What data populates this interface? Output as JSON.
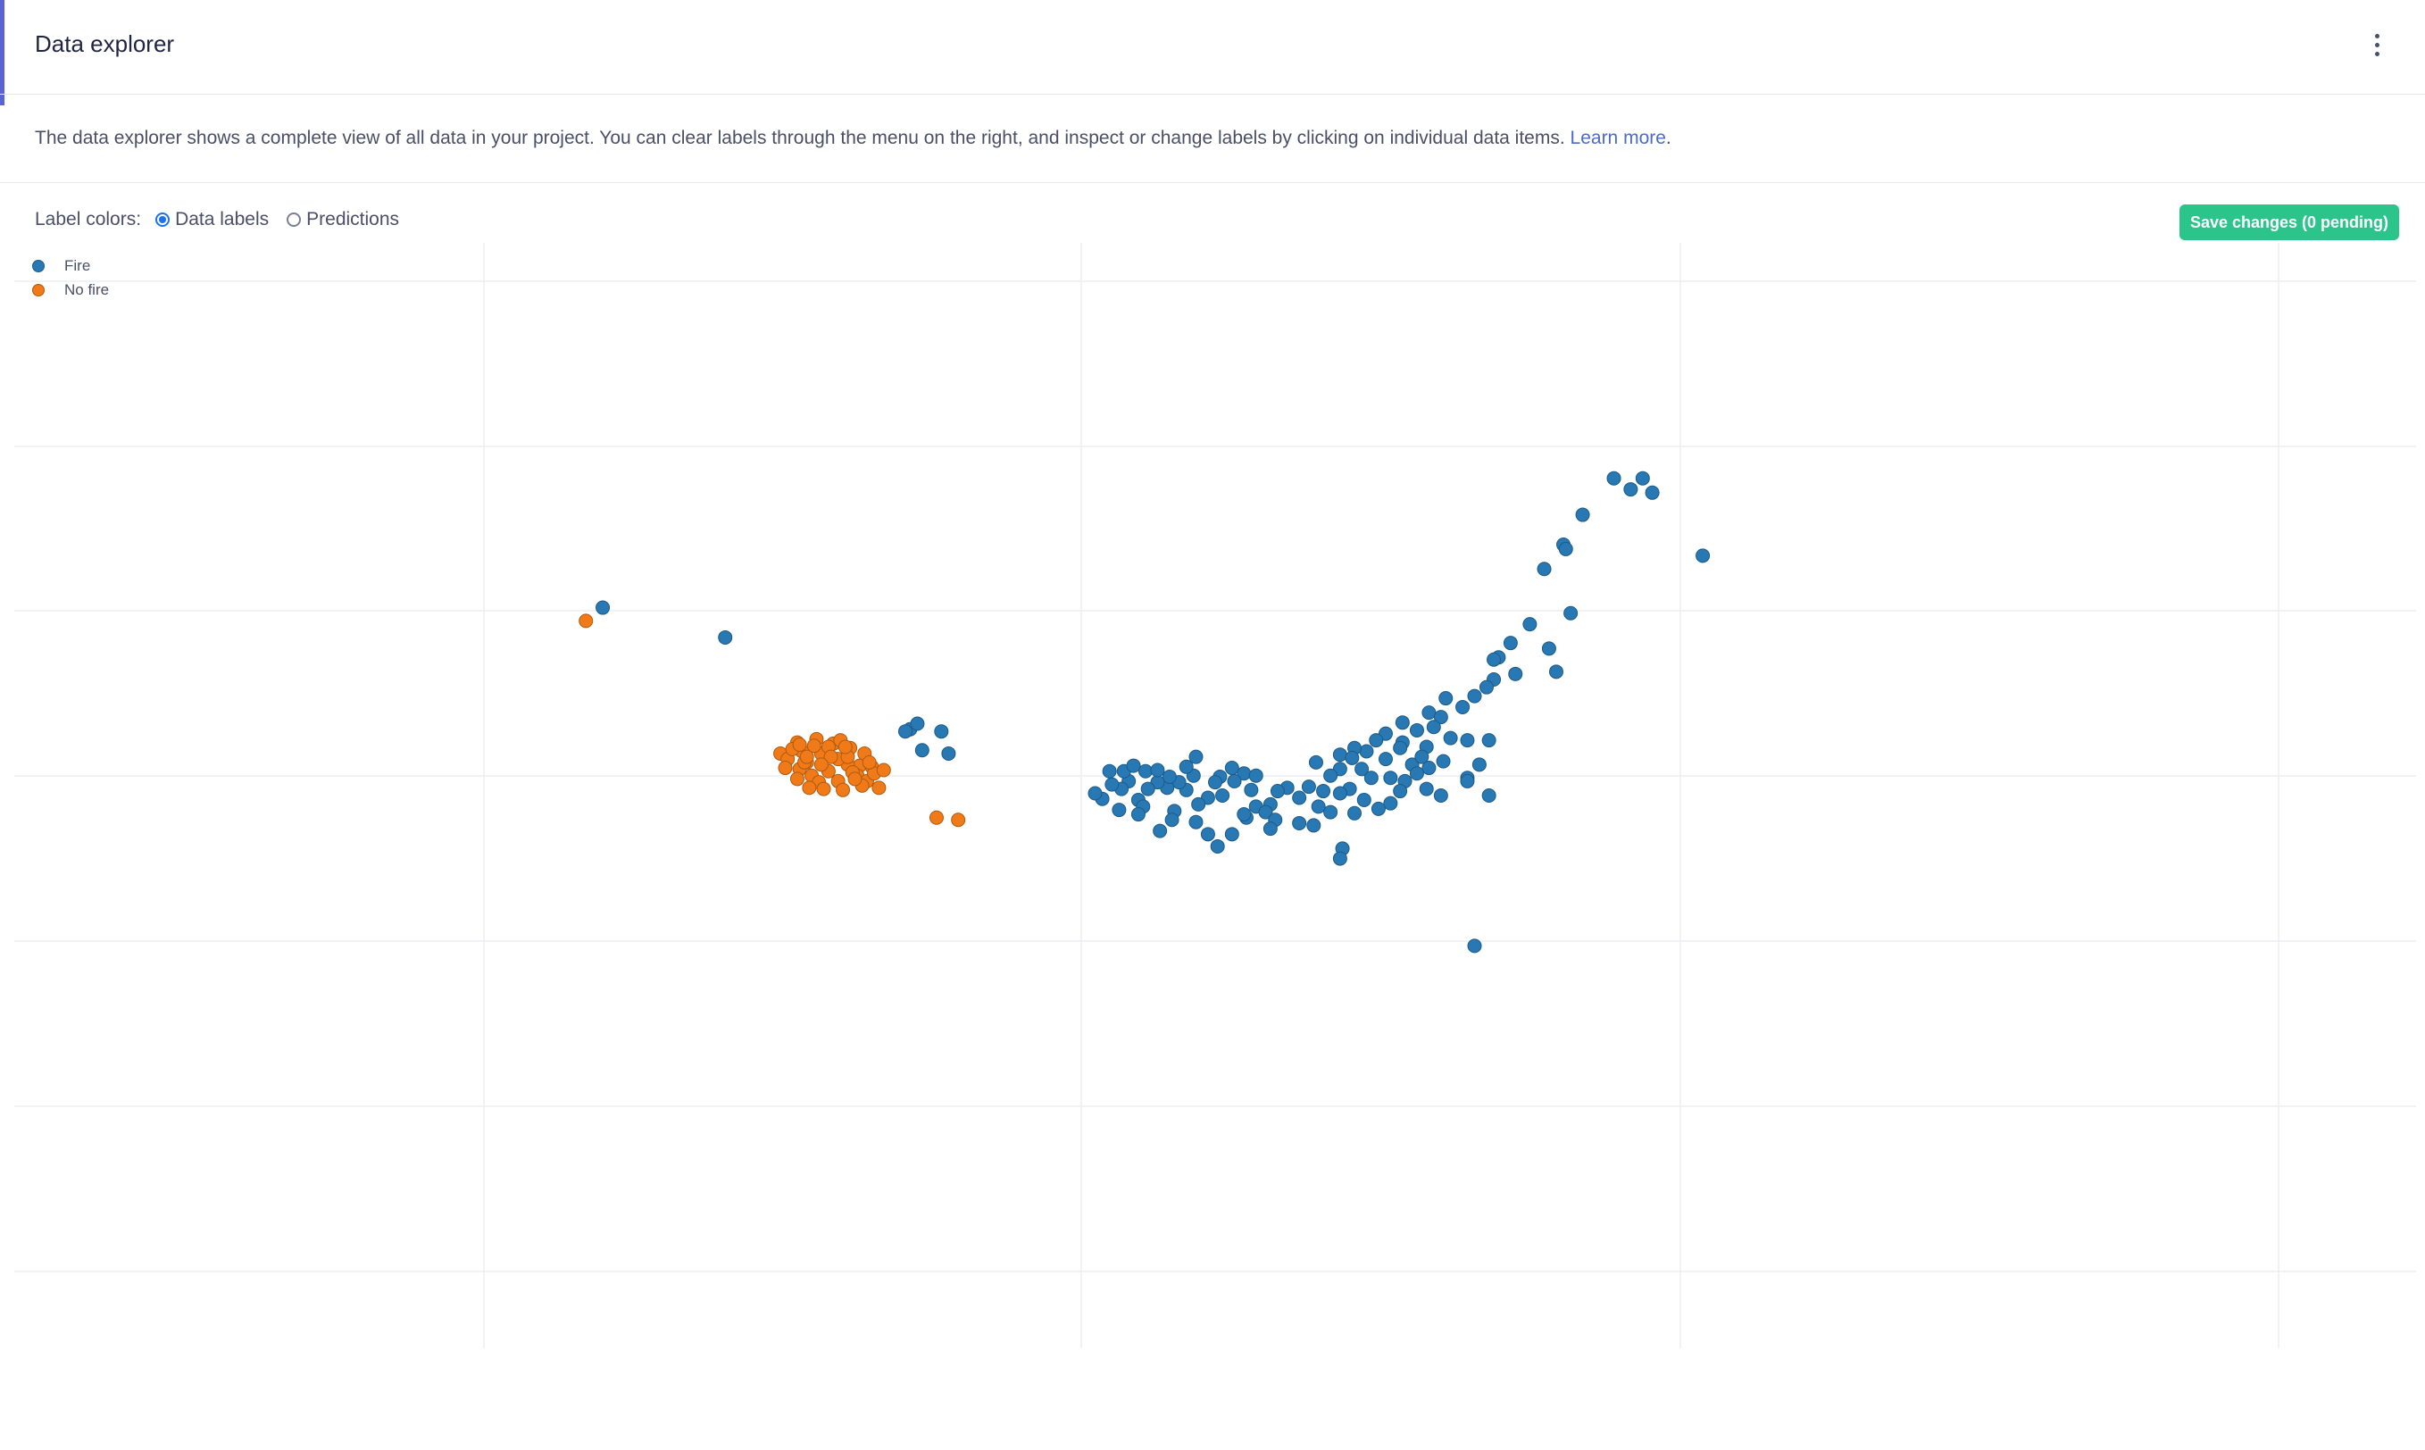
{
  "header": {
    "title": "Data explorer",
    "menu_icon": "kebab-menu-icon"
  },
  "description": {
    "text": "The data explorer shows a complete view of all data in your project. You can clear labels through the menu on the right, and inspect or change labels by clicking on individual data items.",
    "link_label": "Learn more",
    "suffix": "."
  },
  "controls": {
    "label_colors_label": "Label colors:",
    "options": [
      {
        "label": "Data labels",
        "selected": true
      },
      {
        "label": "Predictions",
        "selected": false
      }
    ],
    "save_button_label": "Save changes (0 pending)"
  },
  "colors": {
    "accent": "#5b62d6",
    "fire": "#2878b4",
    "no_fire": "#f07a18",
    "save_button": "#2bc48a"
  },
  "chart_data": {
    "type": "scatter",
    "grid": true,
    "legend_position": "top-left",
    "xlim": [
      0,
      10
    ],
    "ylim": [
      0,
      10
    ],
    "series": [
      {
        "name": "Fire",
        "color": "#2878b4",
        "points": [
          [
            2.45,
            6.7
          ],
          [
            2.96,
            6.43
          ],
          [
            3.73,
            5.6
          ],
          [
            3.76,
            5.65
          ],
          [
            3.71,
            5.58
          ],
          [
            3.86,
            5.58
          ],
          [
            3.78,
            5.41
          ],
          [
            3.89,
            5.38
          ],
          [
            6.78,
            7.87
          ],
          [
            6.82,
            7.74
          ],
          [
            6.73,
            7.77
          ],
          [
            6.66,
            7.87
          ],
          [
            6.53,
            7.54
          ],
          [
            6.45,
            7.27
          ],
          [
            6.46,
            7.23
          ],
          [
            6.37,
            7.05
          ],
          [
            6.31,
            6.55
          ],
          [
            6.48,
            6.65
          ],
          [
            7.03,
            7.17
          ],
          [
            6.39,
            6.33
          ],
          [
            6.23,
            6.38
          ],
          [
            6.18,
            6.25
          ],
          [
            6.16,
            6.23
          ],
          [
            6.25,
            6.1
          ],
          [
            6.42,
            6.12
          ],
          [
            6.16,
            6.05
          ],
          [
            6.13,
            5.98
          ],
          [
            6.08,
            5.9
          ],
          [
            6.03,
            5.8
          ],
          [
            5.96,
            5.88
          ],
          [
            5.89,
            5.75
          ],
          [
            5.94,
            5.71
          ],
          [
            5.78,
            5.66
          ],
          [
            5.91,
            5.62
          ],
          [
            5.84,
            5.59
          ],
          [
            5.78,
            5.48
          ],
          [
            5.71,
            5.56
          ],
          [
            6.05,
            5.5
          ],
          [
            6.14,
            5.5
          ],
          [
            5.98,
            5.52
          ],
          [
            5.88,
            5.44
          ],
          [
            5.77,
            5.43
          ],
          [
            5.71,
            5.33
          ],
          [
            5.67,
            5.5
          ],
          [
            5.63,
            5.4
          ],
          [
            5.58,
            5.43
          ],
          [
            5.52,
            5.37
          ],
          [
            5.52,
            5.24
          ],
          [
            5.48,
            5.18
          ],
          [
            5.57,
            5.34
          ],
          [
            5.61,
            5.24
          ],
          [
            5.65,
            5.16
          ],
          [
            5.73,
            5.16
          ],
          [
            5.79,
            5.13
          ],
          [
            5.82,
            5.28
          ],
          [
            5.86,
            5.35
          ],
          [
            5.89,
            5.25
          ],
          [
            5.95,
            5.31
          ],
          [
            6.05,
            5.16
          ],
          [
            6.1,
            5.28
          ],
          [
            6.14,
            5.0
          ],
          [
            6.05,
            5.13
          ],
          [
            5.94,
            5.0
          ],
          [
            5.88,
            5.06
          ],
          [
            5.84,
            5.2
          ],
          [
            5.77,
            5.04
          ],
          [
            5.73,
            4.93
          ],
          [
            5.68,
            4.88
          ],
          [
            5.62,
            4.96
          ],
          [
            5.56,
            5.06
          ],
          [
            5.52,
            5.02
          ],
          [
            5.48,
            4.85
          ],
          [
            5.43,
            4.9
          ],
          [
            5.45,
            5.04
          ],
          [
            5.39,
            5.08
          ],
          [
            5.35,
            4.98
          ],
          [
            5.3,
            5.07
          ],
          [
            5.26,
            5.04
          ],
          [
            5.23,
            4.92
          ],
          [
            5.17,
            4.9
          ],
          [
            5.21,
            4.85
          ],
          [
            5.15,
            5.05
          ],
          [
            5.12,
            5.2
          ],
          [
            5.08,
            5.13
          ],
          [
            5.03,
            5.0
          ],
          [
            5.13,
            4.8
          ],
          [
            5.25,
            4.78
          ],
          [
            5.35,
            4.75
          ],
          [
            5.41,
            4.73
          ],
          [
            5.17,
            5.18
          ],
          [
            5.07,
            5.25
          ],
          [
            5.02,
            5.17
          ],
          [
            5.0,
            5.12
          ],
          [
            4.97,
            4.98
          ],
          [
            4.93,
            4.92
          ],
          [
            4.88,
            5.05
          ],
          [
            4.85,
            5.12
          ],
          [
            4.8,
            5.07
          ],
          [
            4.76,
            5.12
          ],
          [
            4.72,
            5.06
          ],
          [
            4.68,
            4.96
          ],
          [
            4.64,
            5.13
          ],
          [
            4.61,
            5.06
          ],
          [
            4.57,
            5.1
          ],
          [
            4.53,
            4.97
          ],
          [
            4.5,
            5.02
          ],
          [
            4.56,
            5.22
          ],
          [
            4.62,
            5.22
          ],
          [
            4.66,
            5.27
          ],
          [
            4.71,
            5.22
          ],
          [
            4.76,
            5.23
          ],
          [
            4.81,
            5.17
          ],
          [
            4.91,
            5.18
          ],
          [
            4.88,
            5.26
          ],
          [
            4.83,
            4.86
          ],
          [
            4.7,
            4.9
          ],
          [
            4.6,
            4.87
          ],
          [
            4.68,
            4.83
          ],
          [
            4.82,
            4.78
          ],
          [
            5.12,
            4.83
          ],
          [
            5.23,
            4.7
          ],
          [
            5.58,
            4.84
          ],
          [
            4.92,
            4.76
          ],
          [
            4.77,
            4.68
          ],
          [
            4.97,
            4.65
          ],
          [
            5.07,
            4.65
          ],
          [
            5.01,
            4.54
          ],
          [
            5.53,
            4.52
          ],
          [
            5.52,
            4.43
          ],
          [
            6.08,
            3.64
          ],
          [
            5.42,
            5.3
          ],
          [
            4.92,
            5.35
          ]
        ]
      },
      {
        "name": "No fire",
        "color": "#f07a18",
        "points": [
          [
            2.38,
            6.58
          ],
          [
            3.84,
            4.8
          ],
          [
            3.93,
            4.78
          ],
          [
            3.52,
            5.27
          ],
          [
            3.3,
            5.3
          ],
          [
            3.19,
            5.38
          ],
          [
            3.26,
            5.48
          ],
          [
            3.34,
            5.51
          ],
          [
            3.41,
            5.47
          ],
          [
            3.48,
            5.43
          ],
          [
            3.54,
            5.38
          ],
          [
            3.57,
            5.26
          ],
          [
            3.51,
            5.18
          ],
          [
            3.47,
            5.28
          ],
          [
            3.39,
            5.22
          ],
          [
            3.32,
            5.18
          ],
          [
            3.27,
            5.24
          ],
          [
            3.22,
            5.33
          ],
          [
            3.28,
            5.4
          ],
          [
            3.36,
            5.38
          ],
          [
            3.43,
            5.33
          ],
          [
            3.49,
            5.21
          ],
          [
            3.55,
            5.13
          ],
          [
            3.6,
            5.07
          ],
          [
            3.43,
            5.13
          ],
          [
            3.35,
            5.12
          ],
          [
            3.26,
            5.15
          ],
          [
            3.29,
            5.3
          ],
          [
            3.39,
            5.44
          ],
          [
            3.47,
            5.35
          ],
          [
            3.58,
            5.2
          ],
          [
            3.53,
            5.09
          ],
          [
            3.45,
            5.05
          ],
          [
            3.37,
            5.06
          ],
          [
            3.31,
            5.07
          ],
          [
            3.24,
            5.42
          ],
          [
            3.33,
            5.45
          ],
          [
            3.44,
            5.5
          ],
          [
            3.62,
            5.23
          ],
          [
            3.4,
            5.35
          ],
          [
            3.3,
            5.35
          ],
          [
            3.5,
            5.15
          ],
          [
            3.36,
            5.28
          ],
          [
            3.56,
            5.3
          ],
          [
            3.21,
            5.25
          ],
          [
            3.46,
            5.44
          ],
          [
            3.27,
            5.46
          ]
        ]
      }
    ]
  }
}
